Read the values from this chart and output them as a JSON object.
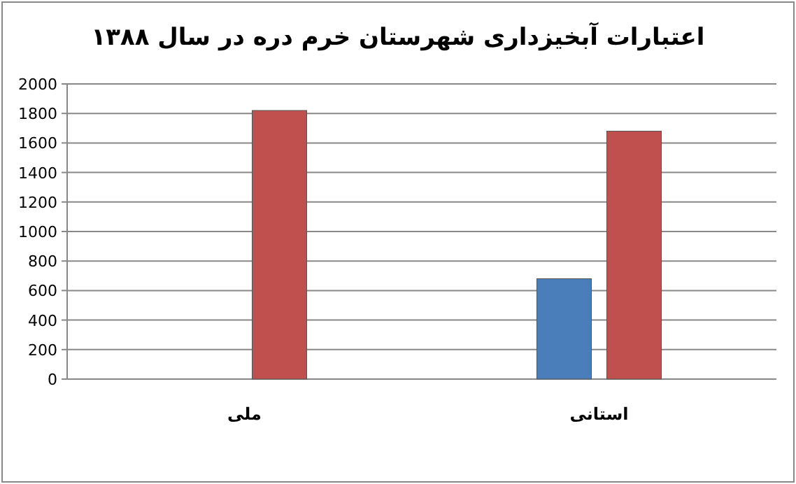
{
  "chart_data": {
    "type": "bar",
    "title": "اعتبارات آبخیزداری شهرستان خرم دره در سال ۱۳۸۸",
    "categories": [
      "ملی",
      "استانی"
    ],
    "series": [
      {
        "color": "#4a7ebb",
        "values": [
          null,
          680
        ]
      },
      {
        "color": "#c0504d",
        "values": [
          1820,
          1680
        ]
      }
    ],
    "ylim": [
      0,
      2000
    ],
    "yticks": [
      0,
      200,
      400,
      600,
      800,
      1000,
      1200,
      1400,
      1600,
      1800,
      2000
    ],
    "grid": "y"
  }
}
